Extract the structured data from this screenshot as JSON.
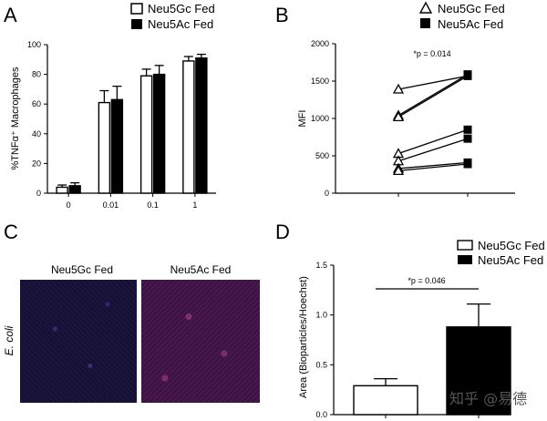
{
  "chart_data": [
    {
      "panel": "A",
      "type": "bar",
      "ylabel": "%TNFα⁺ Macrophages",
      "ylim": [
        0,
        100
      ],
      "yticks": [
        0,
        20,
        40,
        60,
        80,
        100
      ],
      "categories": [
        "0",
        "0.01",
        "0.1",
        "1"
      ],
      "series": [
        {
          "name": "Neu5Gc Fed",
          "fill": "#ffffff",
          "values": [
            4,
            61,
            79,
            89
          ],
          "errors": [
            1.5,
            8,
            4.5,
            3
          ]
        },
        {
          "name": "Neu5Ac Fed",
          "fill": "#000000",
          "values": [
            5,
            63,
            80,
            91
          ],
          "errors": [
            2,
            9,
            6,
            2.5
          ]
        }
      ]
    },
    {
      "panel": "B",
      "type": "line",
      "ylabel": "MFI",
      "ylim": [
        0,
        2000
      ],
      "yticks": [
        0,
        500,
        1000,
        1500,
        2000
      ],
      "annotation": "*p = 0.014",
      "series": [
        {
          "name": "Neu5Gc Fed",
          "marker": "triangle-open"
        },
        {
          "name": "Neu5Ac Fed",
          "marker": "square-filled"
        }
      ],
      "pairs": [
        [
          1390,
          1570
        ],
        [
          1040,
          1590
        ],
        [
          1020,
          1570
        ],
        [
          530,
          850
        ],
        [
          430,
          730
        ],
        [
          330,
          410
        ],
        [
          300,
          390
        ]
      ]
    },
    {
      "panel": "D",
      "type": "bar",
      "ylabel": "Area (Bioparticles/Hoechst)",
      "ylim": [
        0,
        1.5
      ],
      "yticks": [
        0.0,
        0.5,
        1.0,
        1.5
      ],
      "ytick_labels": [
        "0.0",
        "0.5",
        "1.0",
        "1.5"
      ],
      "annotation": "*p = 0.046",
      "series": [
        {
          "name": "Neu5Gc Fed",
          "fill": "#ffffff",
          "value": 0.29,
          "error": 0.07
        },
        {
          "name": "Neu5Ac Fed",
          "fill": "#000000",
          "value": 0.88,
          "error": 0.23
        }
      ]
    }
  ],
  "panel_c": {
    "letter": "C",
    "col1": "Neu5Gc Fed",
    "col2": "Neu5Ac Fed",
    "row_label": "E. coli"
  },
  "letters": {
    "a": "A",
    "b": "B",
    "d": "D"
  },
  "watermark": "知乎 @易德"
}
